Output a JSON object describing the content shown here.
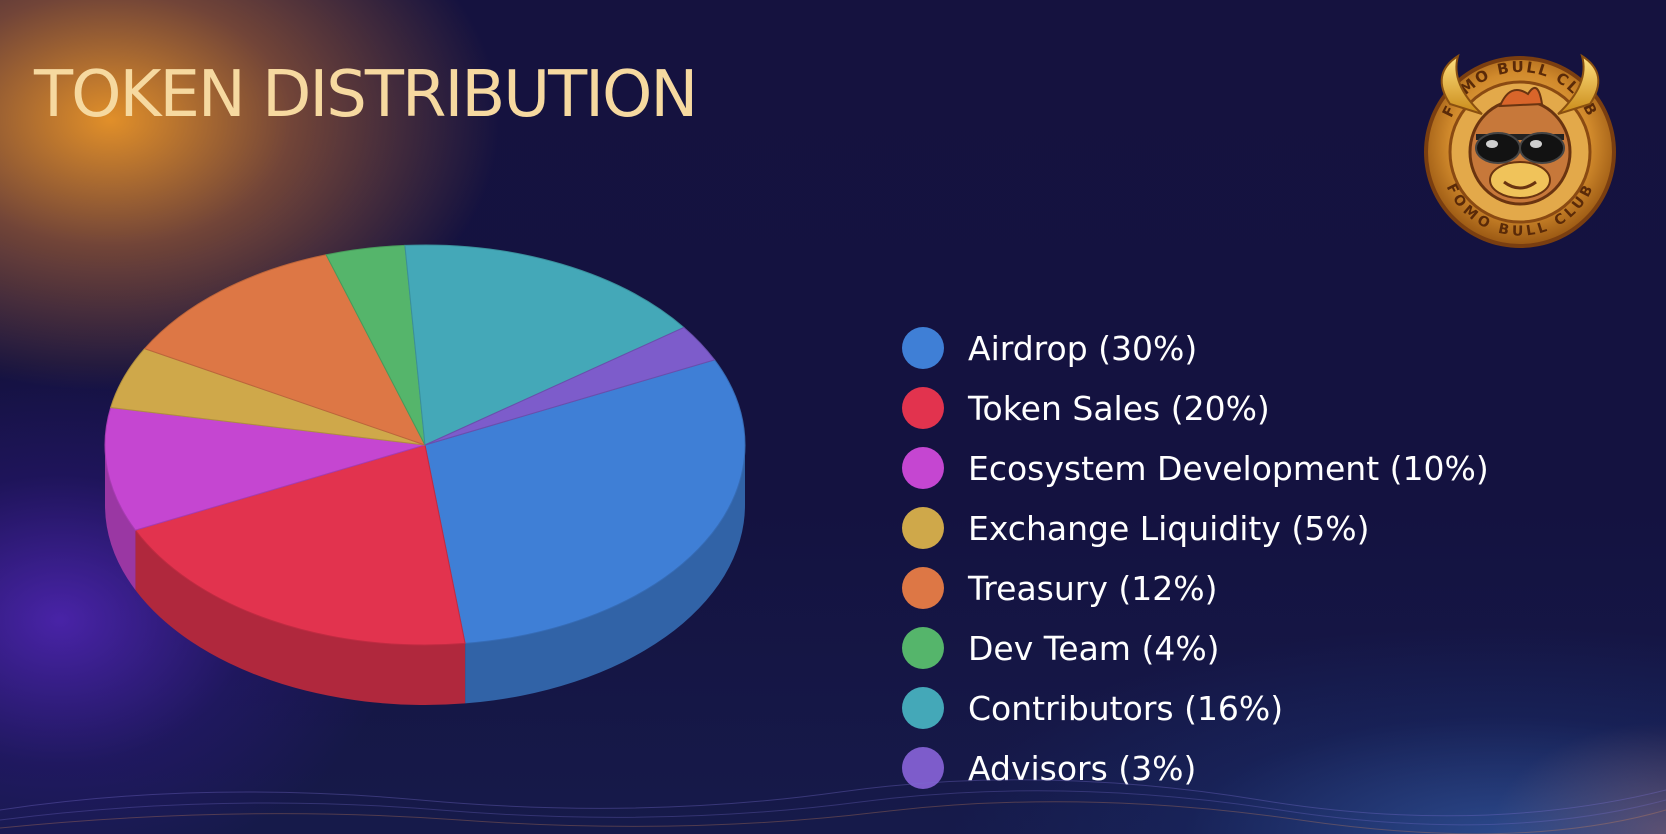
{
  "page": {
    "title": "TOKEN DISTRIBUTION",
    "title_color": "#f6d9a0"
  },
  "logo": {
    "text_top": "FOMO BULL CLUB",
    "text_bottom": "FOMO BULL CLUB",
    "ring_color": "#c98a2a",
    "face_color": "#e0a040"
  },
  "chart_data": {
    "type": "pie",
    "title": "TOKEN DISTRIBUTION",
    "legend_position": "right",
    "categories": [
      "Airdrop",
      "Token Sales",
      "Ecosystem Development",
      "Exchange Liquidity",
      "Treasury",
      "Dev Team",
      "Contributors",
      "Advisors"
    ],
    "values": [
      30,
      20,
      10,
      5,
      12,
      4,
      16,
      3
    ],
    "legend_labels": [
      "Airdrop (30%)",
      "Token Sales (20%)",
      "Ecosystem Development (10%)",
      "Exchange Liquidity (5%)",
      "Treasury (12%)",
      "Dev Team (4%)",
      "Contributors (16%)",
      "Advisors (3%)"
    ],
    "colors": [
      "#3f7fd6",
      "#e2334e",
      "#c546d1",
      "#cfa84a",
      "#dd7745",
      "#55b56b",
      "#44a8b8",
      "#7d5ccb"
    ],
    "style": "3d-exploded"
  }
}
